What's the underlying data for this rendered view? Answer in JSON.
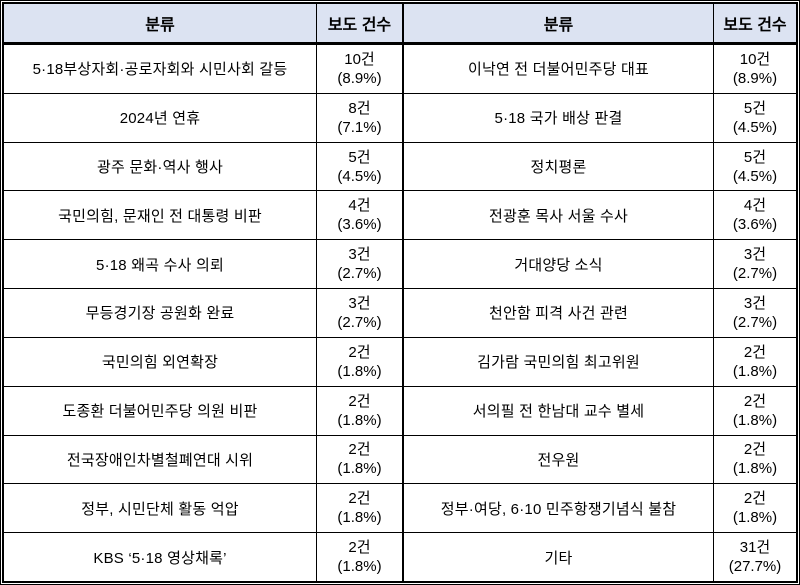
{
  "theme": {
    "header_bg": "#dce3f2",
    "border_color": "#000000",
    "text_color": "#000000",
    "background": "#ffffff"
  },
  "header": {
    "category_label": "분류",
    "count_label": "보도 건수"
  },
  "rows": [
    {
      "left": {
        "label": "5·18부상자회·공로자회와 시민사회 갈등",
        "count": "10건",
        "pct": "(8.9%)"
      },
      "right": {
        "label": "이낙연 전 더불어민주당 대표",
        "count": "10건",
        "pct": "(8.9%)"
      }
    },
    {
      "left": {
        "label": "2024년 연휴",
        "count": "8건",
        "pct": "(7.1%)"
      },
      "right": {
        "label": "5·18 국가 배상 판결",
        "count": "5건",
        "pct": "(4.5%)"
      }
    },
    {
      "left": {
        "label": "광주 문화·역사 행사",
        "count": "5건",
        "pct": "(4.5%)"
      },
      "right": {
        "label": "정치평론",
        "count": "5건",
        "pct": "(4.5%)"
      }
    },
    {
      "left": {
        "label": "국민의힘, 문재인 전 대통령 비판",
        "count": "4건",
        "pct": "(3.6%)"
      },
      "right": {
        "label": "전광훈 목사 서울 수사",
        "count": "4건",
        "pct": "(3.6%)"
      }
    },
    {
      "left": {
        "label": "5·18 왜곡 수사 의뢰",
        "count": "3건",
        "pct": "(2.7%)"
      },
      "right": {
        "label": "거대양당 소식",
        "count": "3건",
        "pct": "(2.7%)"
      }
    },
    {
      "left": {
        "label": "무등경기장 공원화 완료",
        "count": "3건",
        "pct": "(2.7%)"
      },
      "right": {
        "label": "천안함 피격 사건 관련",
        "count": "3건",
        "pct": "(2.7%)"
      }
    },
    {
      "left": {
        "label": "국민의힘 외연확장",
        "count": "2건",
        "pct": "(1.8%)"
      },
      "right": {
        "label": "김가람 국민의힘 최고위원",
        "count": "2건",
        "pct": "(1.8%)"
      }
    },
    {
      "left": {
        "label": "도종환 더불어민주당 의원 비판",
        "count": "2건",
        "pct": "(1.8%)"
      },
      "right": {
        "label": "서의필 전 한남대 교수 별세",
        "count": "2건",
        "pct": "(1.8%)"
      }
    },
    {
      "left": {
        "label": "전국장애인차별철폐연대 시위",
        "count": "2건",
        "pct": "(1.8%)"
      },
      "right": {
        "label": "전우원",
        "count": "2건",
        "pct": "(1.8%)"
      }
    },
    {
      "left": {
        "label": "정부, 시민단체 활동 억압",
        "count": "2건",
        "pct": "(1.8%)"
      },
      "right": {
        "label": "정부·여당, 6·10 민주항쟁기념식 불참",
        "count": "2건",
        "pct": "(1.8%)"
      }
    },
    {
      "left": {
        "label": "KBS ‘5·18 영상채록’",
        "count": "2건",
        "pct": "(1.8%)"
      },
      "right": {
        "label": "기타",
        "count": "31건",
        "pct": "(27.7%)"
      }
    }
  ]
}
